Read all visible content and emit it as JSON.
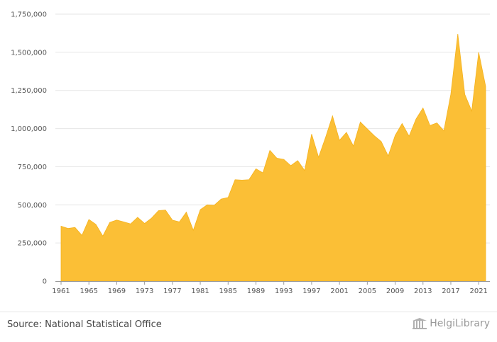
{
  "chart_data": {
    "type": "area",
    "x": [
      1961,
      1962,
      1963,
      1964,
      1965,
      1966,
      1967,
      1968,
      1969,
      1970,
      1971,
      1972,
      1973,
      1974,
      1975,
      1976,
      1977,
      1978,
      1979,
      1980,
      1981,
      1982,
      1983,
      1984,
      1985,
      1986,
      1987,
      1988,
      1989,
      1990,
      1991,
      1992,
      1993,
      1994,
      1995,
      1996,
      1997,
      1998,
      1999,
      2000,
      2001,
      2002,
      2003,
      2004,
      2005,
      2006,
      2007,
      2008,
      2009,
      2010,
      2011,
      2012,
      2013,
      2014,
      2015,
      2016,
      2017,
      2018,
      2019,
      2020,
      2021,
      2022
    ],
    "values": [
      360000,
      345000,
      352000,
      300000,
      404000,
      372000,
      295000,
      385000,
      400000,
      388000,
      375000,
      418000,
      378000,
      413000,
      462000,
      466000,
      400000,
      388000,
      452000,
      333000,
      468000,
      500000,
      497000,
      538000,
      548000,
      665000,
      662000,
      665000,
      736000,
      710000,
      857000,
      806000,
      798000,
      757000,
      790000,
      725000,
      964000,
      812000,
      942000,
      1083000,
      923000,
      975000,
      885000,
      1043000,
      998000,
      953000,
      915000,
      820000,
      955000,
      1033000,
      950000,
      1063000,
      1135000,
      1020000,
      1037000,
      985000,
      1225000,
      1620000,
      1225000,
      1115000,
      1500000,
      1277000
    ],
    "ylim": [
      0,
      1750000
    ],
    "yticks": [
      "0",
      "250,000",
      "500,000",
      "750,000",
      "1,000,000",
      "1,250,000",
      "1,500,000",
      "1,750,000"
    ],
    "xticks": [
      "1961",
      "1965",
      "1969",
      "1973",
      "1977",
      "1981",
      "1985",
      "1989",
      "1993",
      "1997",
      "2001",
      "2005",
      "2009",
      "2013",
      "2017",
      "2021"
    ],
    "grid": true,
    "fill_color": "#fbbf36"
  },
  "footer": {
    "source": "Source: National Statistical Office",
    "brand": "HelgiLibrary",
    "brand_icon": "library-logo-icon"
  }
}
